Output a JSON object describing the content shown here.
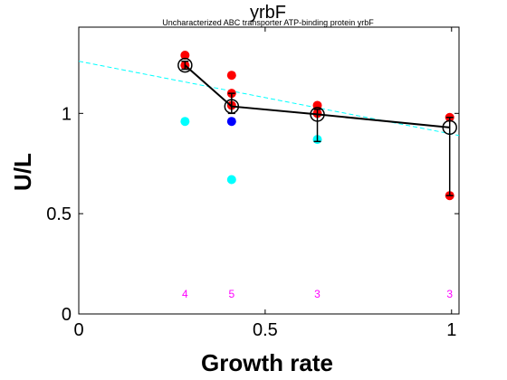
{
  "chart_data": {
    "type": "scatter",
    "title": "yrbF",
    "subtitle": "Uncharacterized ABC transporter ATP-binding protein yrbF",
    "xlabel": "Growth rate",
    "ylabel": "U/L",
    "xlim": [
      0,
      1.02
    ],
    "ylim": [
      0,
      1.43
    ],
    "xticks": [
      0,
      0.5,
      1
    ],
    "xtick_labels": [
      "0",
      "0.5",
      "1"
    ],
    "yticks": [
      0,
      0.5,
      1
    ],
    "ytick_labels": [
      "0",
      "0.5",
      "1"
    ],
    "grid": false,
    "colors": {
      "red": "#ff0000",
      "cyan": "#00ffff",
      "blue": "#0000ff",
      "mean_line": "#000000",
      "fit_line": "#00ffff",
      "count_text": "#ff00ff"
    },
    "red_points": [
      {
        "x": 0.285,
        "y": 1.29
      },
      {
        "x": 0.285,
        "y": 1.24
      },
      {
        "x": 0.41,
        "y": 1.19
      },
      {
        "x": 0.41,
        "y": 1.1
      },
      {
        "x": 0.41,
        "y": 1.04
      },
      {
        "x": 0.64,
        "y": 1.04
      },
      {
        "x": 0.64,
        "y": 1.0
      },
      {
        "x": 0.995,
        "y": 0.98
      },
      {
        "x": 0.995,
        "y": 0.59
      }
    ],
    "cyan_points": [
      {
        "x": 0.285,
        "y": 0.96
      },
      {
        "x": 0.41,
        "y": 0.67
      },
      {
        "x": 0.64,
        "y": 0.87
      }
    ],
    "blue_points": [
      {
        "x": 0.41,
        "y": 0.96
      }
    ],
    "mean_series": [
      {
        "x": 0.285,
        "y": 1.24,
        "err_low": 1.22,
        "err_high": 1.26
      },
      {
        "x": 0.41,
        "y": 1.035,
        "err_low": 1.0,
        "err_high": 1.1
      },
      {
        "x": 0.64,
        "y": 0.995,
        "err_low": 0.86,
        "err_high": 1.02
      },
      {
        "x": 0.995,
        "y": 0.93,
        "err_low": 0.59,
        "err_high": 0.98
      }
    ],
    "fit_line": {
      "x": [
        0,
        1.02
      ],
      "y": [
        1.26,
        0.89
      ]
    },
    "counts": [
      {
        "x": 0.285,
        "label": "4"
      },
      {
        "x": 0.41,
        "label": "5"
      },
      {
        "x": 0.64,
        "label": "3"
      },
      {
        "x": 0.995,
        "label": "3"
      }
    ],
    "count_y": 0.1
  }
}
